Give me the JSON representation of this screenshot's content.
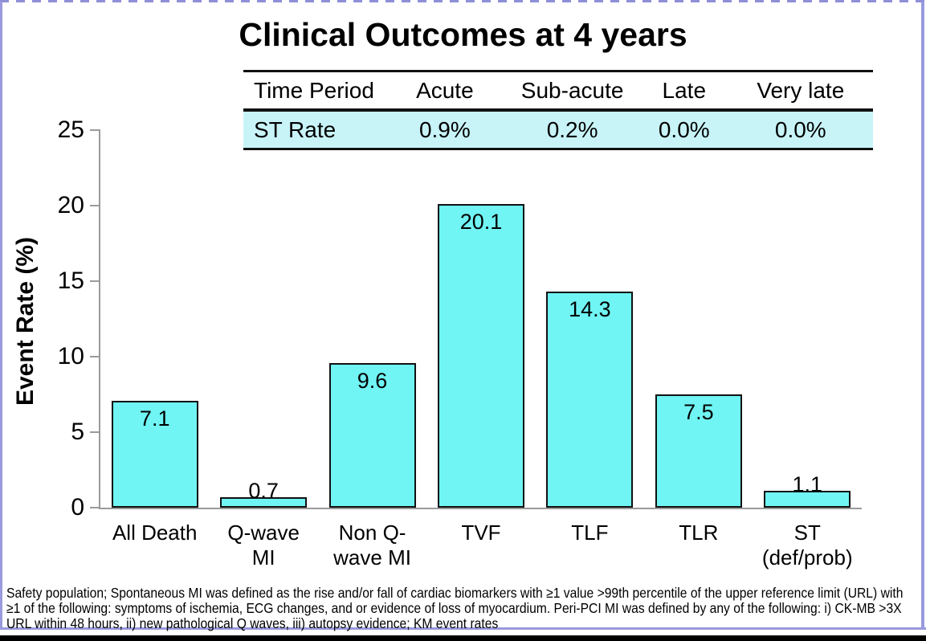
{
  "page": {
    "title": "Clinical Outcomes at 4 years"
  },
  "table": {
    "headers": [
      "Time Period",
      "Acute",
      "Sub-acute",
      "Late",
      "Very late"
    ],
    "rows": [
      {
        "label": "ST Rate",
        "values": [
          "0.9%",
          "0.2%",
          "0.0%",
          "0.0%"
        ]
      }
    ],
    "data_row_bg": "#c8f4f8",
    "col_widths_pct": [
      22.5,
      19,
      21.5,
      14,
      23
    ]
  },
  "chart_data": {
    "type": "bar",
    "title": "Clinical Outcomes at 4 years",
    "categories": [
      "All Death",
      "Q-wave\nMI",
      "Non Q-\nwave MI",
      "TVF",
      "TLF",
      "TLR",
      "ST\n(def/prob)"
    ],
    "values": [
      7.1,
      0.7,
      9.6,
      20.1,
      14.3,
      7.5,
      1.1
    ],
    "value_labels": [
      "7.1",
      "0.7",
      "9.6",
      "20.1",
      "14.3",
      "7.5",
      "1.1"
    ],
    "xlabel": "",
    "ylabel": "Event Rate (%)",
    "ylim": [
      0,
      25
    ],
    "yticks": [
      0,
      5,
      10,
      15,
      20,
      25
    ],
    "grid": false,
    "legend": null,
    "bar_color": "#70f4f4",
    "bar_border_color": "#111111",
    "axis_color": "#9a9a9a"
  },
  "footnote": {
    "text": "Safety population; Spontaneous MI was defined as the rise and/or fall of cardiac biomarkers with ≥1 value >99th percentile of the upper reference limit (URL) with ≥1 of the following: symptoms of ischemia, ECG changes, and or evidence of loss of myocardium. Peri-PCI MI was defined by any of the following: i) CK-MB >3X URL within 48 hours, ii) new pathological Q waves, iii) autopsy evidence; KM event rates"
  },
  "frame": {
    "border_color": "#9a9ade",
    "bottom_bar_color": "#000000"
  }
}
